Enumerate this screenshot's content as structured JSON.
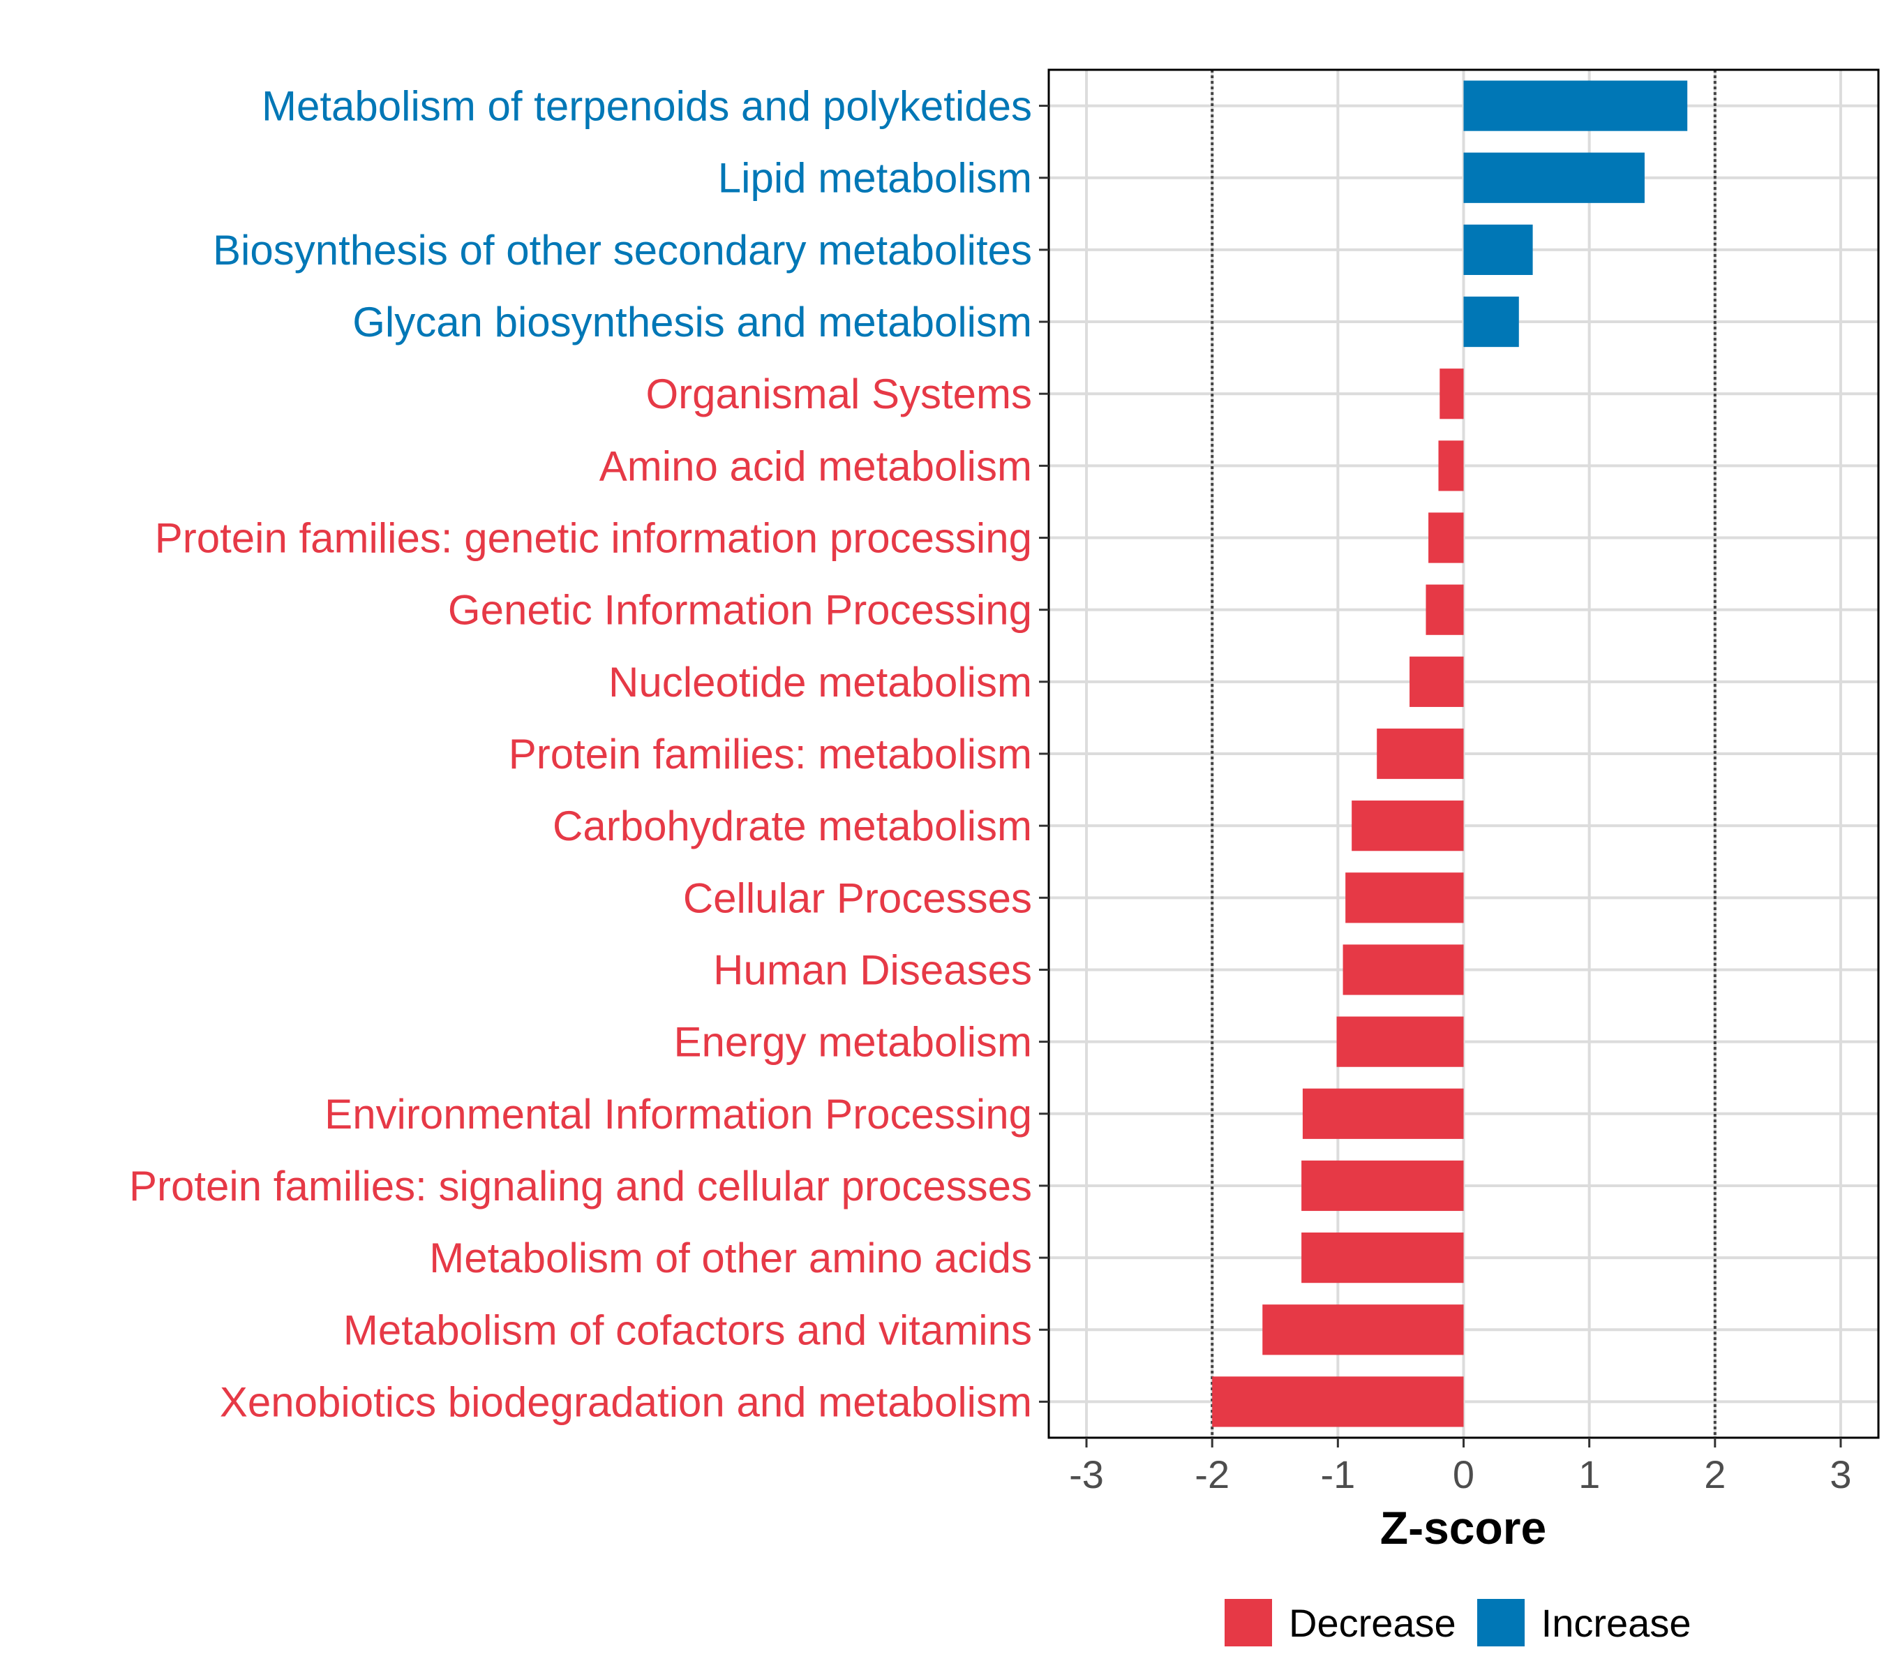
{
  "chart_data": {
    "type": "bar",
    "orientation": "horizontal",
    "xlabel": "Z-score",
    "xlim": [
      -3.3,
      3.3
    ],
    "x_ticks": [
      -3,
      -2,
      -1,
      0,
      1,
      2,
      3
    ],
    "x_tick_labels": [
      "-3",
      "-2",
      "-1",
      "0",
      "1",
      "2",
      "3"
    ],
    "reference_lines": [
      -2,
      2
    ],
    "grid": true,
    "legend_position": "bottom",
    "categories": [
      "Metabolism of terpenoids and polyketides",
      "Lipid metabolism",
      "Biosynthesis of other secondary metabolites",
      "Glycan biosynthesis and metabolism",
      "Organismal Systems",
      "Amino acid metabolism",
      "Protein families: genetic information processing",
      "Genetic Information Processing",
      "Nucleotide metabolism",
      "Protein families: metabolism",
      "Carbohydrate metabolism",
      "Cellular Processes",
      "Human Diseases",
      "Energy metabolism",
      "Environmental Information Processing",
      "Protein families: signaling and cellular processes",
      "Metabolism of other amino acids",
      "Metabolism of cofactors and vitamins",
      "Xenobiotics biodegradation and metabolism"
    ],
    "values": [
      1.78,
      1.44,
      0.55,
      0.44,
      -0.19,
      -0.2,
      -0.28,
      -0.3,
      -0.43,
      -0.69,
      -0.89,
      -0.94,
      -0.96,
      -1.01,
      -1.28,
      -1.29,
      -1.29,
      -1.6,
      -2.0
    ],
    "groups": [
      "Increase",
      "Increase",
      "Increase",
      "Increase",
      "Decrease",
      "Decrease",
      "Decrease",
      "Decrease",
      "Decrease",
      "Decrease",
      "Decrease",
      "Decrease",
      "Decrease",
      "Decrease",
      "Decrease",
      "Decrease",
      "Decrease",
      "Decrease",
      "Decrease"
    ],
    "legend": [
      {
        "name": "Decrease",
        "color": "#e63946"
      },
      {
        "name": "Increase",
        "color": "#0077b6"
      }
    ],
    "colors": {
      "Decrease": "#e63946",
      "Increase": "#0077b6"
    }
  }
}
